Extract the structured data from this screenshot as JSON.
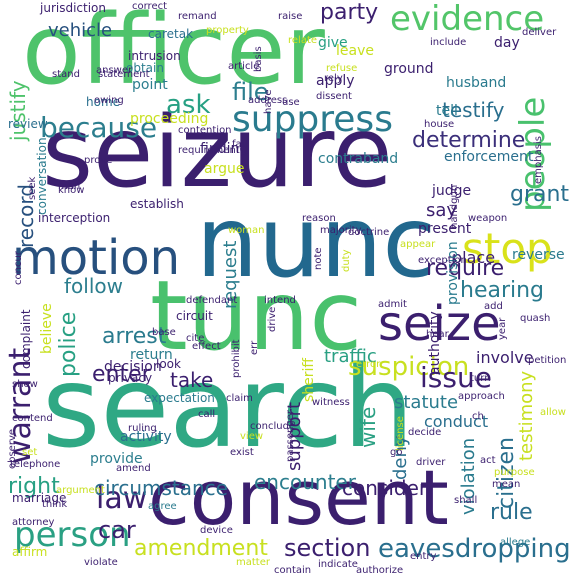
{
  "words": [
    {
      "text": "officer",
      "color": "#4ec36b"
    },
    {
      "text": "seizure",
      "color": "#3b1f6e"
    },
    {
      "text": "nunc",
      "color": "#22688e"
    },
    {
      "text": "tunc",
      "color": "#49c16d"
    },
    {
      "text": "search",
      "color": "#2fa884"
    },
    {
      "text": "consent",
      "color": "#3b1f6e"
    },
    {
      "text": "seize",
      "color": "#3b1f6e"
    },
    {
      "text": "motion",
      "color": "#27507e"
    },
    {
      "text": "evidence",
      "color": "#52c569"
    },
    {
      "text": "suppress",
      "color": "#2a7b8e"
    },
    {
      "text": "because",
      "color": "#2c7e8e"
    },
    {
      "text": "people",
      "color": "#49c16d"
    },
    {
      "text": "stop",
      "color": "#d9e21a"
    },
    {
      "text": "person",
      "color": "#2aa083"
    },
    {
      "text": "law",
      "color": "#3b1f6e"
    },
    {
      "text": "warrant",
      "color": "#3b1f6e"
    },
    {
      "text": "suspicion",
      "color": "#c8e020"
    },
    {
      "text": "issue",
      "color": "#3b1f6e"
    },
    {
      "text": "eavesdropping",
      "color": "#2a6f8e"
    },
    {
      "text": "section",
      "color": "#3b1f6e"
    },
    {
      "text": "amendment",
      "color": "#c8e020"
    },
    {
      "text": "file",
      "color": "#2c7e8e"
    },
    {
      "text": "determine",
      "color": "#3b2f7a"
    },
    {
      "text": "testify",
      "color": "#2a6f8e"
    },
    {
      "text": "ask",
      "color": "#27a083"
    },
    {
      "text": "grant",
      "color": "#2a6f8e"
    },
    {
      "text": "record",
      "color": "#27507e"
    },
    {
      "text": "arrest",
      "color": "#2a7b8e"
    },
    {
      "text": "require",
      "color": "#3b1f6e"
    },
    {
      "text": "hearing",
      "color": "#2a7b8e"
    },
    {
      "text": "police",
      "color": "#27a083"
    },
    {
      "text": "follow",
      "color": "#2c7e8e"
    },
    {
      "text": "enter",
      "color": "#3b1f6e"
    },
    {
      "text": "take",
      "color": "#3b1f6e"
    },
    {
      "text": "right",
      "color": "#27a083"
    },
    {
      "text": "circumstance",
      "color": "#2a6f8e"
    },
    {
      "text": "encounter",
      "color": "#2c7e8e"
    },
    {
      "text": "consider",
      "color": "#3b1f6e"
    },
    {
      "text": "citizen",
      "color": "#2a6f8e"
    },
    {
      "text": "rule",
      "color": "#2a6f8e"
    },
    {
      "text": "car",
      "color": "#3b1f6e"
    },
    {
      "text": "party",
      "color": "#3b1f6e"
    },
    {
      "text": "vehicle",
      "color": "#27507e"
    },
    {
      "text": "justify",
      "color": "#4ec36b"
    },
    {
      "text": "traffic",
      "color": "#2aa083"
    },
    {
      "text": "statute",
      "color": "#2a7b8e"
    },
    {
      "text": "testimony",
      "color": "#c8e020"
    },
    {
      "text": "wife",
      "color": "#2aa083"
    },
    {
      "text": "deny",
      "color": "#2a6f8e"
    },
    {
      "text": "violation",
      "color": "#2a7b8e"
    },
    {
      "text": "support",
      "color": "#3b1f6e"
    },
    {
      "text": "request",
      "color": "#2c7e8e"
    },
    {
      "text": "say",
      "color": "#3b1f6e"
    },
    {
      "text": "place",
      "color": "#3b1f6e"
    },
    {
      "text": "reverse",
      "color": "#2a7b8e"
    },
    {
      "text": "conduct",
      "color": "#2a6f8e"
    },
    {
      "text": "involve",
      "color": "#3b1f6e"
    },
    {
      "text": "believe",
      "color": "#c8e020"
    },
    {
      "text": "sheriff",
      "color": "#c8e020"
    },
    {
      "text": "decision",
      "color": "#3b1f6e"
    },
    {
      "text": "return",
      "color": "#2c7e8e"
    },
    {
      "text": "authority",
      "color": "#3b1f6e"
    },
    {
      "text": "provide",
      "color": "#2c7e8e"
    },
    {
      "text": "activity",
      "color": "#2a6f8e"
    },
    {
      "text": "contraband",
      "color": "#2c7e8e"
    },
    {
      "text": "enforcement",
      "color": "#2a6f8e"
    },
    {
      "text": "proceeding",
      "color": "#c8e020"
    },
    {
      "text": "finding",
      "color": "#3b1f6e"
    },
    {
      "text": "argue",
      "color": "#c8e020"
    },
    {
      "text": "judge",
      "color": "#3b1f6e"
    },
    {
      "text": "present",
      "color": "#3b1f6e"
    },
    {
      "text": "provision",
      "color": "#2a7b8e"
    },
    {
      "text": "home",
      "color": "#2a6f8e"
    },
    {
      "text": "point",
      "color": "#2c7e8e"
    },
    {
      "text": "obtain",
      "color": "#2c7e8e"
    },
    {
      "text": "apply",
      "color": "#3b1f6e"
    },
    {
      "text": "ground",
      "color": "#3b1f6e"
    },
    {
      "text": "husband",
      "color": "#2a7b8e"
    },
    {
      "text": "tell",
      "color": "#2a7b8e"
    },
    {
      "text": "give",
      "color": "#27a083"
    },
    {
      "text": "leave",
      "color": "#c8e020"
    },
    {
      "text": "day",
      "color": "#3b1f6e"
    },
    {
      "text": "jurisdiction",
      "color": "#3b1f6e"
    },
    {
      "text": "caretak",
      "color": "#2a6f8e"
    },
    {
      "text": "intrusion",
      "color": "#3b1f6e"
    },
    {
      "text": "establish",
      "color": "#3b1f6e"
    },
    {
      "text": "review",
      "color": "#2a6f8e"
    },
    {
      "text": "conversation",
      "color": "#2a7b8e"
    },
    {
      "text": "interception",
      "color": "#3b1f6e"
    },
    {
      "text": "complaint",
      "color": "#3b1f6e"
    },
    {
      "text": "circuit",
      "color": "#3b1f6e"
    },
    {
      "text": "base",
      "color": "#3b1f6e"
    },
    {
      "text": "privacy",
      "color": "#3b1f6e"
    },
    {
      "text": "look",
      "color": "#3b1f6e"
    },
    {
      "text": "expectation",
      "color": "#2a7b8e"
    },
    {
      "text": "marriage",
      "color": "#3b1f6e"
    },
    {
      "text": "ruling",
      "color": "#3b1f6e"
    },
    {
      "text": "conclude",
      "color": "#3b1f6e"
    },
    {
      "text": "witness",
      "color": "#3b1f6e"
    },
    {
      "text": "passenger",
      "color": "#3b1f6e"
    },
    {
      "text": "driver",
      "color": "#3b1f6e"
    },
    {
      "text": "license",
      "color": "#c8e020"
    },
    {
      "text": "purpose",
      "color": "#c8e020"
    },
    {
      "text": "affirm",
      "color": "#c8e020"
    },
    {
      "text": "attorney",
      "color": "#3b1f6e"
    },
    {
      "text": "think",
      "color": "#3b1f6e"
    },
    {
      "text": "argument",
      "color": "#c8e020"
    },
    {
      "text": "agree",
      "color": "#2a7b8e"
    },
    {
      "text": "device",
      "color": "#3b1f6e"
    },
    {
      "text": "authorize",
      "color": "#3b1f6e"
    },
    {
      "text": "indicate",
      "color": "#3b1f6e"
    },
    {
      "text": "contain",
      "color": "#3b1f6e"
    },
    {
      "text": "matter",
      "color": "#c8e020"
    },
    {
      "text": "violate",
      "color": "#3b1f6e"
    },
    {
      "text": "entry",
      "color": "#3b1f6e"
    },
    {
      "text": "allege",
      "color": "#2a7b8e"
    },
    {
      "text": "mean",
      "color": "#3b1f6e"
    },
    {
      "text": "shall",
      "color": "#3b1f6e"
    },
    {
      "text": "act",
      "color": "#3b1f6e"
    },
    {
      "text": "ch",
      "color": "#3b1f6e"
    },
    {
      "text": "go",
      "color": "#3b1f6e"
    },
    {
      "text": "decide",
      "color": "#3b1f6e"
    },
    {
      "text": "approach",
      "color": "#3b1f6e"
    },
    {
      "text": "allow",
      "color": "#c8e020"
    },
    {
      "text": "year",
      "color": "#3b1f6e"
    },
    {
      "text": "petition",
      "color": "#3b1f6e"
    },
    {
      "text": "quash",
      "color": "#3b1f6e"
    },
    {
      "text": "emphasis",
      "color": "#3b1f6e"
    },
    {
      "text": "exception",
      "color": "#3b1f6e"
    },
    {
      "text": "handgun",
      "color": "#3b1f6e"
    },
    {
      "text": "weapon",
      "color": "#3b1f6e"
    },
    {
      "text": "house",
      "color": "#3b1f6e"
    },
    {
      "text": "appear",
      "color": "#c8e020"
    },
    {
      "text": "hear",
      "color": "#3b1f6e"
    },
    {
      "text": "admit",
      "color": "#3b1f6e"
    },
    {
      "text": "error",
      "color": "#c8e020"
    },
    {
      "text": "note",
      "color": "#3b1f6e"
    },
    {
      "text": "duty",
      "color": "#c8e020"
    },
    {
      "text": "doctrine",
      "color": "#3b1f6e"
    },
    {
      "text": "majority",
      "color": "#3b1f6e"
    },
    {
      "text": "reason",
      "color": "#3b1f6e"
    },
    {
      "text": "requirement",
      "color": "#3b1f6e"
    },
    {
      "text": "fail",
      "color": "#3b1f6e"
    },
    {
      "text": "contention",
      "color": "#3b1f6e"
    },
    {
      "text": "address",
      "color": "#3b1f6e"
    },
    {
      "text": "rely",
      "color": "#3b1f6e"
    },
    {
      "text": "refuse",
      "color": "#c8e020"
    },
    {
      "text": "article",
      "color": "#3b1f6e"
    },
    {
      "text": "basis",
      "color": "#3b1f6e"
    },
    {
      "text": "remand",
      "color": "#3b1f6e"
    },
    {
      "text": "property",
      "color": "#c8e020"
    },
    {
      "text": "raise",
      "color": "#3b1f6e"
    },
    {
      "text": "correct",
      "color": "#3b1f6e"
    },
    {
      "text": "relate",
      "color": "#c8e020"
    },
    {
      "text": "include",
      "color": "#3b1f6e"
    },
    {
      "text": "deliver",
      "color": "#3b1f6e"
    },
    {
      "text": "answer",
      "color": "#3b1f6e"
    },
    {
      "text": "statement",
      "color": "#3b1f6e"
    },
    {
      "text": "owing",
      "color": "#3b1f6e"
    },
    {
      "text": "stand",
      "color": "#3b1f6e"
    },
    {
      "text": "prove",
      "color": "#3b1f6e"
    },
    {
      "text": "know",
      "color": "#3b1f6e"
    },
    {
      "text": "seek",
      "color": "#3b1f6e"
    },
    {
      "text": "man",
      "color": "#3b1f6e"
    },
    {
      "text": "concur",
      "color": "#3b1f6e"
    },
    {
      "text": "show",
      "color": "#3b1f6e"
    },
    {
      "text": "observe",
      "color": "#3b1f6e"
    },
    {
      "text": "set",
      "color": "#c8e020"
    },
    {
      "text": "telephone",
      "color": "#3b1f6e"
    },
    {
      "text": "contend",
      "color": "#3b1f6e"
    },
    {
      "text": "defendant",
      "color": "#3b1f6e"
    },
    {
      "text": "woman",
      "color": "#c8e020"
    },
    {
      "text": "cite",
      "color": "#3b1f6e"
    },
    {
      "text": "effect",
      "color": "#3b1f6e"
    },
    {
      "text": "claim",
      "color": "#3b1f6e"
    },
    {
      "text": "amend",
      "color": "#3b1f6e"
    },
    {
      "text": "exist",
      "color": "#3b1f6e"
    },
    {
      "text": "view",
      "color": "#c8e020"
    },
    {
      "text": "call",
      "color": "#3b1f6e"
    },
    {
      "text": "err",
      "color": "#3b1f6e"
    },
    {
      "text": "add",
      "color": "#3b1f6e"
    },
    {
      "text": "turn",
      "color": "#3b1f6e"
    },
    {
      "text": "have",
      "color": "#3b1f6e"
    },
    {
      "text": "use",
      "color": "#3b1f6e"
    },
    {
      "text": "dissent",
      "color": "#3b1f6e"
    },
    {
      "text": "intend",
      "color": "#3b1f6e"
    },
    {
      "text": "drive",
      "color": "#3b1f6e"
    },
    {
      "text": "prohibit",
      "color": "#3b1f6e"
    },
    {
      "text": "change",
      "color": "#3b1f6e"
    },
    {
      "text": "result",
      "color": "#c8e020"
    }
  ]
}
